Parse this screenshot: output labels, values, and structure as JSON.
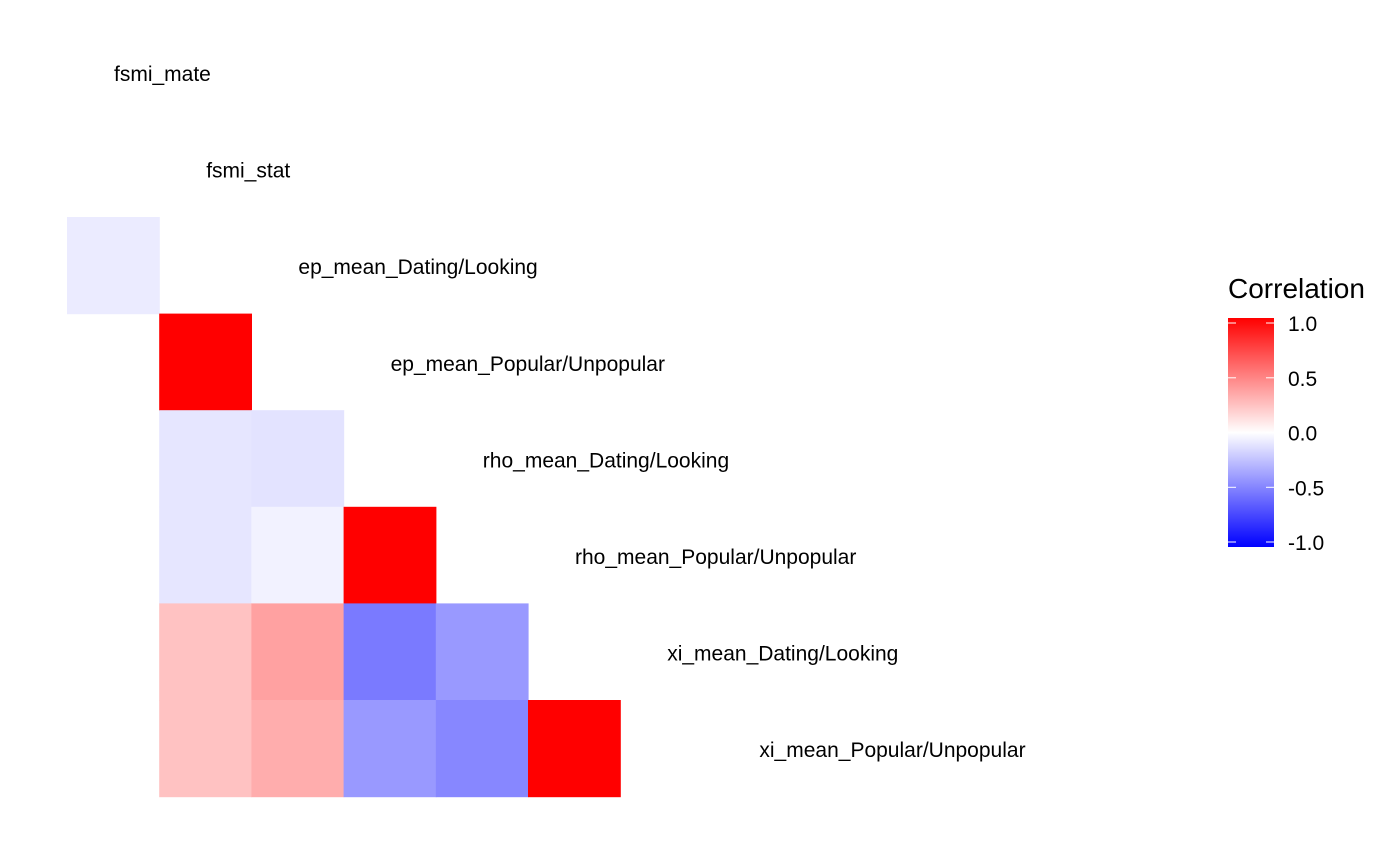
{
  "chart_data": {
    "type": "heatmap",
    "variables": [
      "fsmi_mate",
      "fsmi_stat",
      "ep_mean_Dating/Looking",
      "ep_mean_Popular/Unpopular",
      "rho_mean_Dating/Looking",
      "rho_mean_Popular/Unpopular",
      "xi_mean_Dating/Looking",
      "xi_mean_Popular/Unpopular"
    ],
    "matrix": [
      [
        null,
        null,
        null,
        null,
        null,
        null,
        null
      ],
      [
        -0.08,
        null,
        null,
        null,
        null,
        null,
        null
      ],
      [
        null,
        1.0,
        null,
        null,
        null,
        null,
        null
      ],
      [
        null,
        -0.1,
        -0.11,
        null,
        null,
        null,
        null
      ],
      [
        null,
        -0.1,
        -0.05,
        1.0,
        null,
        null,
        null
      ],
      [
        null,
        0.24,
        0.37,
        -0.52,
        -0.4,
        null,
        null
      ],
      [
        null,
        0.24,
        0.32,
        -0.4,
        -0.47,
        1.0,
        null
      ],
      [
        null,
        null,
        null,
        null,
        null,
        null,
        null
      ]
    ],
    "legend": {
      "title": "Correlation",
      "ticks": [
        1.0,
        0.5,
        0.0,
        -0.5,
        -1.0
      ],
      "tick_labels": [
        "1.0",
        "0.5",
        "0.0",
        "-0.5",
        "-1.0"
      ],
      "range": [
        -1,
        1
      ],
      "colors": {
        "high": "#FF0000",
        "mid": "#FFFFFF",
        "low": "#0000FF"
      },
      "placement": "right"
    },
    "title": "",
    "xlabel": "",
    "ylabel": ""
  }
}
